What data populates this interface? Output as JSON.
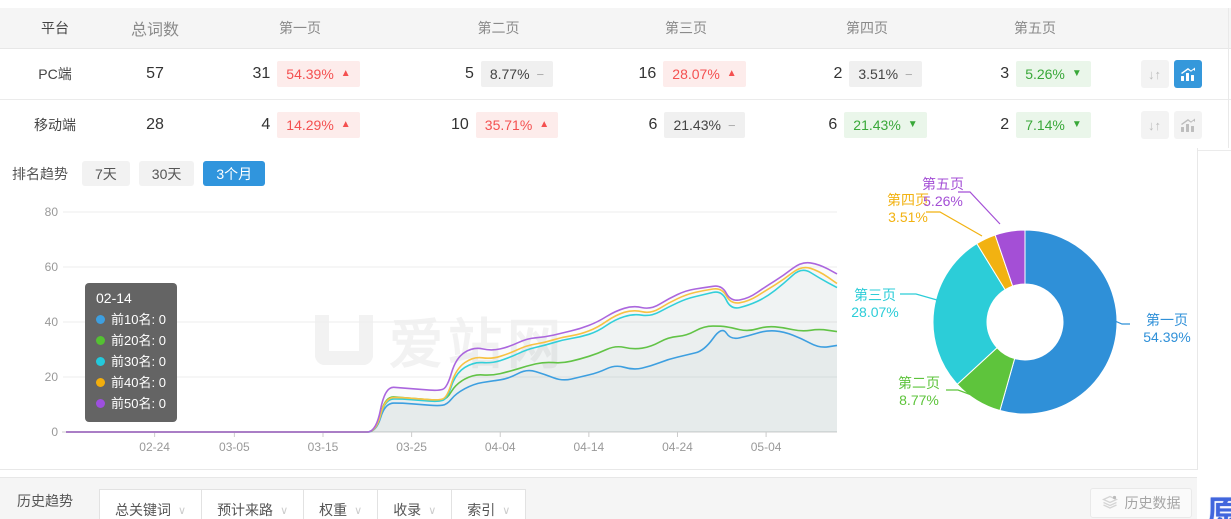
{
  "table": {
    "headers": {
      "platform": "平台",
      "total": "总词数",
      "pages": [
        "第一页",
        "第二页",
        "第三页",
        "第四页",
        "第五页"
      ]
    },
    "rows": [
      {
        "platform": "PC端",
        "total": "57",
        "pages": [
          {
            "count": "31",
            "pct": "54.39%",
            "trend": "up"
          },
          {
            "count": "5",
            "pct": "8.77%",
            "trend": "flat"
          },
          {
            "count": "16",
            "pct": "28.07%",
            "trend": "up"
          },
          {
            "count": "2",
            "pct": "3.51%",
            "trend": "flat"
          },
          {
            "count": "3",
            "pct": "5.26%",
            "trend": "down"
          }
        ],
        "trend_icon_active": true
      },
      {
        "platform": "移动端",
        "total": "28",
        "pages": [
          {
            "count": "4",
            "pct": "14.29%",
            "trend": "up"
          },
          {
            "count": "10",
            "pct": "35.71%",
            "trend": "up"
          },
          {
            "count": "6",
            "pct": "21.43%",
            "trend": "flat"
          },
          {
            "count": "6",
            "pct": "21.43%",
            "trend": "down"
          },
          {
            "count": "2",
            "pct": "7.14%",
            "trend": "down"
          }
        ],
        "trend_icon_active": false
      }
    ]
  },
  "trend_section": {
    "label": "排名趋势",
    "tabs": [
      {
        "label": "7天",
        "active": false
      },
      {
        "label": "30天",
        "active": false
      },
      {
        "label": "3个月",
        "active": true
      }
    ],
    "tooltip": {
      "title": "02-14",
      "items": [
        {
          "name": "前10名",
          "value": "0",
          "color": "#3D9FE0"
        },
        {
          "name": "前20名",
          "value": "0",
          "color": "#54C132"
        },
        {
          "name": "前30名",
          "value": "0",
          "color": "#23C9DC"
        },
        {
          "name": "前40名",
          "value": "0",
          "color": "#F2AE0D"
        },
        {
          "name": "前50名",
          "value": "0",
          "color": "#9D4FDE"
        }
      ]
    },
    "watermark": "爱站网"
  },
  "chart_data": [
    {
      "type": "line",
      "title": "排名趋势 3个月",
      "x_start_date": "02-14",
      "x_axis_labels": [
        "02-24",
        "03-05",
        "03-15",
        "03-25",
        "04-04",
        "04-14",
        "04-24",
        "05-04"
      ],
      "x_label_days": [
        10,
        19,
        29,
        39,
        49,
        59,
        69,
        79
      ],
      "x_domain_days": [
        0,
        87
      ],
      "ylim": [
        0,
        80
      ],
      "y_ticks": [
        0,
        20,
        40,
        60,
        80
      ],
      "grid": true,
      "legend_position": "tooltip-only",
      "x": [
        0,
        33,
        35,
        36,
        38,
        40,
        42,
        43,
        44,
        46,
        48,
        50,
        52,
        54,
        56,
        58,
        60,
        62,
        64,
        66,
        68,
        70,
        72,
        74,
        75,
        77,
        79,
        81,
        83,
        85,
        87
      ],
      "series": [
        {
          "name": "前10名",
          "color": "#3D9FE0",
          "values": [
            0,
            0,
            0,
            10.5,
            10.5,
            10,
            9.5,
            10,
            14,
            17.5,
            18.5,
            19.5,
            23,
            21,
            18.5,
            20,
            21.5,
            24.5,
            22.5,
            24,
            26.5,
            28,
            29.5,
            38.5,
            33.5,
            35,
            37,
            36.5,
            34,
            30.5,
            31.5
          ]
        },
        {
          "name": "前20名",
          "color": "#62C346",
          "values": [
            0,
            0,
            0,
            13,
            12.5,
            12,
            11.5,
            12,
            17.5,
            21,
            20.5,
            22,
            24,
            25.5,
            25,
            26.5,
            28.5,
            31.5,
            30,
            31,
            34.5,
            35,
            38.5,
            38.5,
            38,
            36.5,
            38.5,
            38,
            36.5,
            37.5,
            36.5
          ]
        },
        {
          "name": "前30名",
          "color": "#32CFD9",
          "values": [
            0,
            0,
            0,
            12,
            12,
            11.5,
            11,
            12,
            21.5,
            25.5,
            25,
            27,
            30,
            31.5,
            33.5,
            34.5,
            36.5,
            41,
            43,
            42,
            45.5,
            48.5,
            50,
            51.5,
            44.5,
            46,
            49,
            54,
            60,
            56,
            52.5
          ]
        },
        {
          "name": "前40名",
          "color": "#F7C243",
          "values": [
            0,
            0,
            0,
            12.5,
            12.5,
            12,
            11.5,
            12.5,
            23,
            27.5,
            26.5,
            28.5,
            31.5,
            32.5,
            34.5,
            35.5,
            38,
            42.5,
            44.5,
            43,
            47,
            50,
            51.5,
            52.5,
            46.5,
            47.5,
            51.5,
            55.5,
            60.5,
            58.5,
            54
          ]
        },
        {
          "name": "前50名",
          "color": "#AB66DE",
          "values": [
            0,
            0,
            0,
            16.5,
            16,
            15.5,
            15,
            16,
            27,
            31,
            29.5,
            31,
            34,
            34.5,
            36,
            37.5,
            40,
            44,
            46,
            44.5,
            48.5,
            51.5,
            52.5,
            53.5,
            47.5,
            48.5,
            53,
            57,
            62,
            61,
            57.5
          ]
        }
      ]
    },
    {
      "type": "donut",
      "slices": [
        {
          "label": "第一页",
          "value": 54.39,
          "pct_label": "54.39%",
          "color": "#2F90D8"
        },
        {
          "label": "第二页",
          "value": 8.77,
          "pct_label": "8.77%",
          "color": "#5EC43C"
        },
        {
          "label": "第三页",
          "value": 28.07,
          "pct_label": "28.07%",
          "color": "#2CCDD8"
        },
        {
          "label": "第四页",
          "value": 3.51,
          "pct_label": "3.51%",
          "color": "#F2B211"
        },
        {
          "label": "第五页",
          "value": 5.26,
          "pct_label": "5.26%",
          "color": "#A44FD6"
        }
      ]
    }
  ],
  "bottom_bar": {
    "label": "历史趋势",
    "tabs": [
      {
        "label": "总关键词"
      },
      {
        "label": "预计来路"
      },
      {
        "label": "权重"
      },
      {
        "label": "收录"
      },
      {
        "label": "索引"
      }
    ],
    "history_button": "历史数据"
  },
  "floating_badge": "原"
}
